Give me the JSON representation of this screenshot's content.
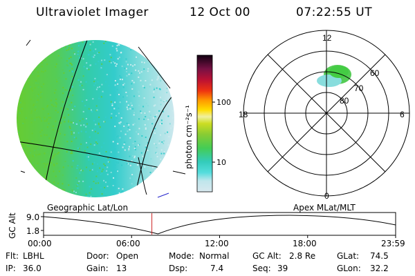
{
  "header": {
    "app_title": "Ultraviolet Imager",
    "date": "12 Oct 00",
    "time": "07:22:55 UT"
  },
  "colorbar": {
    "unit_label": "photon cm⁻²s⁻¹",
    "ticks": [
      "100",
      "10"
    ],
    "scale": "log"
  },
  "polar_plot": {
    "mlt_labels": [
      "12",
      "18",
      "6",
      "0"
    ],
    "mlat_labels": [
      "60",
      "70",
      "80"
    ]
  },
  "panel_labels": {
    "left": "Geographic Lat/Lon",
    "right": "Apex MLat/MLT"
  },
  "timeline": {
    "ylabel": "GC Alt",
    "ymax": "9.0",
    "ymin": "1.8",
    "ticks": [
      "00:00",
      "06:00",
      "12:00",
      "18:00",
      "23:59"
    ],
    "current_time_fraction": 0.3076
  },
  "info": {
    "filter_label": "Flt:",
    "filter_value": "LBHL",
    "ip_label": "IP:",
    "ip_value": "36.0",
    "door_label": "Door:",
    "door_value": "Open",
    "gain_label": "Gain:",
    "gain_value": "13",
    "mode_label": "Mode:",
    "mode_value": "Normal",
    "dsp_label": "Dsp:",
    "dsp_value": "7.4",
    "gcalt_label": "GC Alt:",
    "gcalt_value": "2.8 Re",
    "seq_label": "Seq:",
    "seq_value": "39",
    "glat_label": "GLat:",
    "glat_value": "74.5",
    "glon_label": "GLon:",
    "glon_value": "32.2"
  },
  "colors": {
    "marker": "#cc2222",
    "accent_line": "#2222cc"
  }
}
